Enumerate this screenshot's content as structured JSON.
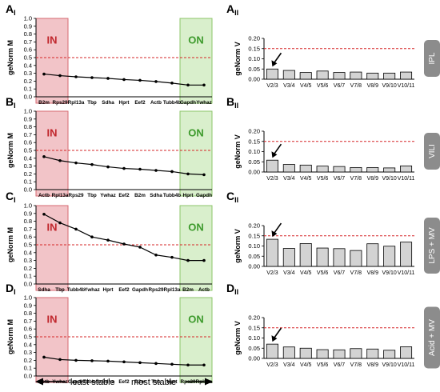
{
  "panels": [
    {
      "label_main": "A",
      "label_sub": "I",
      "side_tag": "IPL"
    },
    {
      "label_main": "A",
      "label_sub": "II"
    },
    {
      "label_main": "B",
      "label_sub": "I",
      "side_tag": "VILI"
    },
    {
      "label_main": "B",
      "label_sub": "II"
    },
    {
      "label_main": "C",
      "label_sub": "I",
      "side_tag": "LPS + MV"
    },
    {
      "label_main": "C",
      "label_sub": "II"
    },
    {
      "label_main": "D",
      "label_sub": "I",
      "side_tag": "Acid + MV"
    },
    {
      "label_main": "D",
      "label_sub": "II"
    }
  ],
  "box_labels": {
    "in": "IN",
    "on": "ON"
  },
  "bottom": {
    "left": "least stable",
    "right": "most stable"
  },
  "colors": {
    "line": "#000000",
    "threshold": "#d62728",
    "bar_fill": "#d3d3d3",
    "in_fill": "#f2c4c8",
    "in_stroke": "#d66a72",
    "in_text": "#c0272d",
    "on_fill": "#d9efcc",
    "on_stroke": "#8cc46a",
    "on_text": "#3d9a2c",
    "tag_fill": "#8c8c8c",
    "tag_text": "#ffffff"
  },
  "chart_data": [
    {
      "type": "line",
      "ylabel": "geNorm M",
      "ylim": [
        0,
        1.0
      ],
      "yticks": [
        "0.0",
        "0.1",
        "0.2",
        "0.3",
        "0.4",
        "0.5",
        "0.6",
        "0.7",
        "0.8",
        "0.9",
        "1.0"
      ],
      "categories": [
        "B2m",
        "Rps29",
        "Rpl13a",
        "Tbp",
        "Sdha",
        "Hprt",
        "Eef2",
        "Actb",
        "Tubb4b",
        "Gapdh",
        "Ywhaz"
      ],
      "in_count": 2,
      "on_count": 2,
      "threshold": 0.5,
      "values": [
        0.29,
        0.27,
        0.255,
        0.245,
        0.235,
        0.22,
        0.21,
        0.195,
        0.175,
        0.15,
        0.15
      ]
    },
    {
      "type": "bar",
      "ylabel": "geNorm V",
      "ylim": [
        0,
        0.2
      ],
      "yticks": [
        "0.00",
        "0.05",
        "0.10",
        "0.15",
        "0.20"
      ],
      "categories": [
        "V2/3",
        "V3/4",
        "V4/5",
        "V5/6",
        "V6/7",
        "V7/8",
        "V8/9",
        "V9/10",
        "V10/11"
      ],
      "threshold": 0.15,
      "arrow_index": 0,
      "values": [
        0.05,
        0.043,
        0.033,
        0.04,
        0.033,
        0.035,
        0.03,
        0.03,
        0.035
      ]
    },
    {
      "type": "line",
      "ylabel": "geNorm M",
      "ylim": [
        0,
        1.0
      ],
      "yticks": [
        "0.0",
        "0.1",
        "0.2",
        "0.3",
        "0.4",
        "0.5",
        "0.6",
        "0.7",
        "0.8",
        "0.9",
        "1.0"
      ],
      "categories": [
        "Actb",
        "Rpl13a",
        "Rps29",
        "Tbp",
        "Ywhaz",
        "Eef2",
        "B2m",
        "Sdha",
        "Tubb4b",
        "Hprt",
        "Gapdh"
      ],
      "in_count": 2,
      "on_count": 2,
      "threshold": 0.5,
      "values": [
        0.42,
        0.37,
        0.34,
        0.32,
        0.29,
        0.27,
        0.26,
        0.245,
        0.23,
        0.2,
        0.19
      ]
    },
    {
      "type": "bar",
      "ylabel": "geNorm V",
      "ylim": [
        0,
        0.2
      ],
      "yticks": [
        "0.00",
        "0.05",
        "0.10",
        "0.15",
        "0.20"
      ],
      "categories": [
        "V2/3",
        "V3/4",
        "V4/5",
        "V5/6",
        "V6/7",
        "V7/8",
        "V8/9",
        "V9/10",
        "V10/11"
      ],
      "threshold": 0.15,
      "arrow_index": 0,
      "values": [
        0.058,
        0.037,
        0.034,
        0.029,
        0.027,
        0.022,
        0.022,
        0.02,
        0.03
      ]
    },
    {
      "type": "line",
      "ylabel": "geNorm M",
      "ylim": [
        0,
        1.0
      ],
      "yticks": [
        "0.0",
        "0.1",
        "0.2",
        "0.3",
        "0.4",
        "0.5",
        "0.6",
        "0.7",
        "0.8",
        "0.9",
        "1.0"
      ],
      "categories": [
        "Sdha",
        "Tbp",
        "Tubb4b",
        "Ywhaz",
        "Hprt",
        "Eef2",
        "Gapdh",
        "Rps29",
        "Rpl13a",
        "B2m",
        "Actb"
      ],
      "in_count": 2,
      "on_count": 2,
      "threshold": 0.5,
      "values": [
        0.89,
        0.78,
        0.7,
        0.6,
        0.56,
        0.51,
        0.47,
        0.37,
        0.34,
        0.3,
        0.3
      ]
    },
    {
      "type": "bar",
      "ylabel": "geNorm V",
      "ylim": [
        0,
        0.2
      ],
      "yticks": [
        "0.00",
        "0.05",
        "0.10",
        "0.15",
        "0.20"
      ],
      "categories": [
        "V2/3",
        "V3/4",
        "V4/5",
        "V5/6",
        "V6/7",
        "V7/8",
        "V8/9",
        "V9/10",
        "V10/11"
      ],
      "threshold": 0.15,
      "arrow_index": 0,
      "values": [
        0.133,
        0.088,
        0.112,
        0.09,
        0.087,
        0.078,
        0.111,
        0.099,
        0.119
      ]
    },
    {
      "type": "line",
      "ylabel": "geNorm M",
      "ylim": [
        0,
        1.0
      ],
      "yticks": [
        "0.0",
        "0.1",
        "0.2",
        "0.3",
        "0.4",
        "0.5",
        "0.6",
        "0.7",
        "0.8",
        "0.9",
        "1.0"
      ],
      "categories": [
        "Actb",
        "Ywhaz",
        "Gapdh",
        "Tubb4b",
        "Sdha",
        "Eef2",
        "B2m",
        "Tbp",
        "Hprt",
        "Rps29",
        "Rpl13a"
      ],
      "in_count": 2,
      "on_count": 2,
      "threshold": 0.5,
      "values": [
        0.24,
        0.21,
        0.2,
        0.195,
        0.19,
        0.18,
        0.17,
        0.16,
        0.15,
        0.14,
        0.14
      ]
    },
    {
      "type": "bar",
      "ylabel": "geNorm V",
      "ylim": [
        0,
        0.2
      ],
      "yticks": [
        "0.00",
        "0.05",
        "0.10",
        "0.15",
        "0.20"
      ],
      "categories": [
        "V2/3",
        "V3/4",
        "V4/5",
        "V5/6",
        "V6/7",
        "V7/8",
        "V8/9",
        "V9/10",
        "V10/11"
      ],
      "threshold": 0.15,
      "arrow_index": 0,
      "values": [
        0.07,
        0.056,
        0.05,
        0.043,
        0.042,
        0.048,
        0.046,
        0.04,
        0.057
      ]
    }
  ]
}
